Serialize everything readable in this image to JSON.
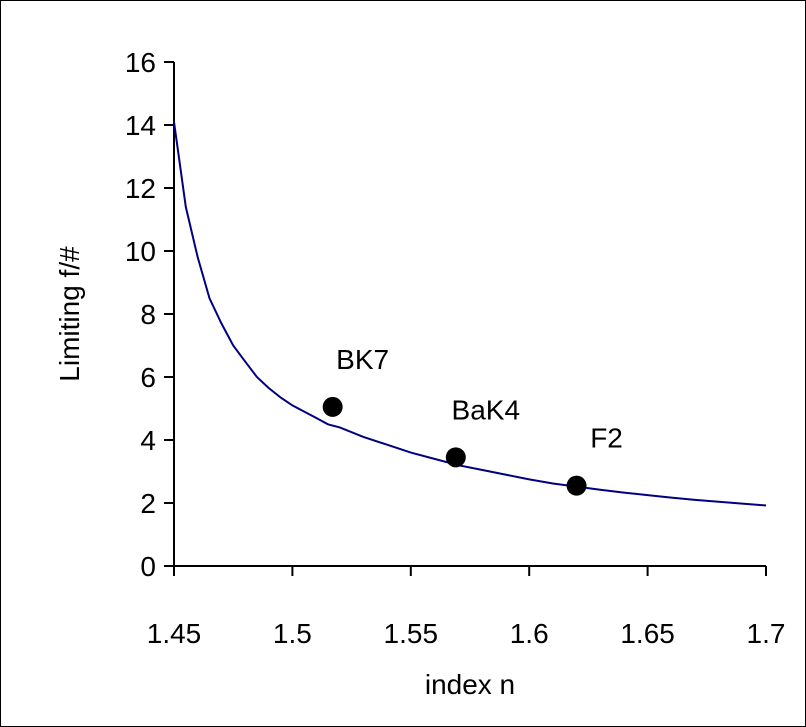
{
  "chart_data": {
    "type": "line",
    "xlabel": "index n",
    "ylabel": "Limiting f/#",
    "xlim": [
      1.45,
      1.7
    ],
    "ylim": [
      0,
      16
    ],
    "x_ticks": [
      "1.45",
      "1.5",
      "1.55",
      "1.6",
      "1.65",
      "1.7"
    ],
    "y_ticks": [
      "0",
      "2",
      "4",
      "6",
      "8",
      "10",
      "12",
      "14",
      "16"
    ],
    "grid": false,
    "line_color": "#000080",
    "series": [
      {
        "x": [
          1.45,
          1.455,
          1.46,
          1.465,
          1.47,
          1.475,
          1.48,
          1.485,
          1.49,
          1.495,
          1.5,
          1.505,
          1.51,
          1.515,
          1.52,
          1.53,
          1.54,
          1.55,
          1.56,
          1.57,
          1.58,
          1.59,
          1.6,
          1.61,
          1.62,
          1.63,
          1.64,
          1.65,
          1.66,
          1.67,
          1.68,
          1.69,
          1.7
        ],
        "y": [
          14.1,
          11.4,
          9.8,
          8.5,
          7.7,
          7.0,
          6.5,
          6.0,
          5.65,
          5.35,
          5.1,
          4.9,
          4.7,
          4.5,
          4.4,
          4.1,
          3.85,
          3.6,
          3.4,
          3.2,
          3.05,
          2.9,
          2.75,
          2.62,
          2.52,
          2.42,
          2.33,
          2.25,
          2.17,
          2.1,
          2.04,
          1.98,
          1.92
        ]
      }
    ],
    "points": [
      {
        "label": "BK7",
        "x": 1.517,
        "y": 5.05
      },
      {
        "label": "BaK4",
        "x": 1.569,
        "y": 3.45
      },
      {
        "label": "F2",
        "x": 1.62,
        "y": 2.55
      }
    ]
  }
}
